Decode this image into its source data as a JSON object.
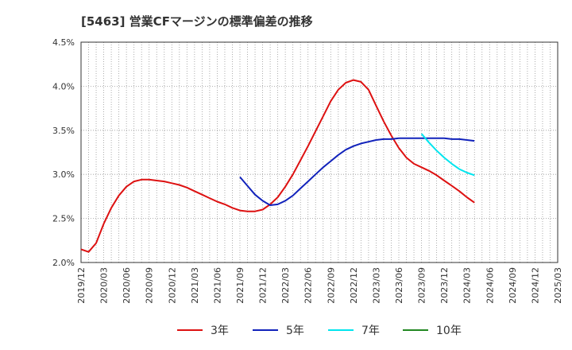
{
  "chart_data": {
    "type": "line",
    "title": "[5463]  営業CFマージンの標準偏差の推移",
    "xlabel": "",
    "ylabel": "",
    "y_ticks": [
      "2.0%",
      "2.5%",
      "3.0%",
      "3.5%",
      "4.0%",
      "4.5%"
    ],
    "y_tick_values": [
      2.0,
      2.5,
      3.0,
      3.5,
      4.0,
      4.5
    ],
    "ylim": [
      2.0,
      4.5
    ],
    "x_range": [
      "2019/12",
      "2025/03"
    ],
    "x_ticks": [
      "2019/12",
      "2020/03",
      "2020/06",
      "2020/09",
      "2020/12",
      "2021/03",
      "2021/06",
      "2021/09",
      "2021/12",
      "2022/03",
      "2022/06",
      "2022/09",
      "2022/12",
      "2023/03",
      "2023/06",
      "2023/09",
      "2023/12",
      "2024/03",
      "2024/06",
      "2024/09",
      "2024/12",
      "2025/03"
    ],
    "grid": true,
    "legend_position": "bottom",
    "series": [
      {
        "name": "3年",
        "color": "#dd1111",
        "points": [
          [
            "2019/12",
            2.15
          ],
          [
            "2020/01",
            2.12
          ],
          [
            "2020/02",
            2.22
          ],
          [
            "2020/03",
            2.44
          ],
          [
            "2020/04",
            2.62
          ],
          [
            "2020/05",
            2.76
          ],
          [
            "2020/06",
            2.86
          ],
          [
            "2020/07",
            2.92
          ],
          [
            "2020/08",
            2.94
          ],
          [
            "2020/09",
            2.94
          ],
          [
            "2020/10",
            2.93
          ],
          [
            "2020/11",
            2.92
          ],
          [
            "2020/12",
            2.9
          ],
          [
            "2021/01",
            2.88
          ],
          [
            "2021/02",
            2.85
          ],
          [
            "2021/03",
            2.81
          ],
          [
            "2021/04",
            2.77
          ],
          [
            "2021/05",
            2.73
          ],
          [
            "2021/06",
            2.69
          ],
          [
            "2021/07",
            2.66
          ],
          [
            "2021/08",
            2.62
          ],
          [
            "2021/09",
            2.59
          ],
          [
            "2021/10",
            2.58
          ],
          [
            "2021/11",
            2.58
          ],
          [
            "2021/12",
            2.6
          ],
          [
            "2022/01",
            2.66
          ],
          [
            "2022/02",
            2.74
          ],
          [
            "2022/03",
            2.86
          ],
          [
            "2022/04",
            3.0
          ],
          [
            "2022/05",
            3.16
          ],
          [
            "2022/06",
            3.32
          ],
          [
            "2022/07",
            3.49
          ],
          [
            "2022/08",
            3.66
          ],
          [
            "2022/09",
            3.83
          ],
          [
            "2022/10",
            3.96
          ],
          [
            "2022/11",
            4.04
          ],
          [
            "2022/12",
            4.07
          ],
          [
            "2023/01",
            4.05
          ],
          [
            "2023/02",
            3.96
          ],
          [
            "2023/03",
            3.78
          ],
          [
            "2023/04",
            3.6
          ],
          [
            "2023/05",
            3.44
          ],
          [
            "2023/06",
            3.3
          ],
          [
            "2023/07",
            3.19
          ],
          [
            "2023/08",
            3.12
          ],
          [
            "2023/09",
            3.08
          ],
          [
            "2023/10",
            3.04
          ],
          [
            "2023/11",
            2.99
          ],
          [
            "2023/12",
            2.93
          ],
          [
            "2024/01",
            2.87
          ],
          [
            "2024/02",
            2.81
          ],
          [
            "2024/03",
            2.74
          ],
          [
            "2024/04",
            2.68
          ]
        ]
      },
      {
        "name": "5年",
        "color": "#1122bb",
        "points": [
          [
            "2021/09",
            2.97
          ],
          [
            "2021/10",
            2.87
          ],
          [
            "2021/11",
            2.77
          ],
          [
            "2021/12",
            2.7
          ],
          [
            "2022/01",
            2.65
          ],
          [
            "2022/02",
            2.66
          ],
          [
            "2022/03",
            2.7
          ],
          [
            "2022/04",
            2.76
          ],
          [
            "2022/05",
            2.84
          ],
          [
            "2022/06",
            2.92
          ],
          [
            "2022/07",
            3.0
          ],
          [
            "2022/08",
            3.08
          ],
          [
            "2022/09",
            3.15
          ],
          [
            "2022/10",
            3.22
          ],
          [
            "2022/11",
            3.28
          ],
          [
            "2022/12",
            3.32
          ],
          [
            "2023/01",
            3.35
          ],
          [
            "2023/02",
            3.37
          ],
          [
            "2023/03",
            3.39
          ],
          [
            "2023/04",
            3.4
          ],
          [
            "2023/05",
            3.4
          ],
          [
            "2023/06",
            3.41
          ],
          [
            "2023/07",
            3.41
          ],
          [
            "2023/08",
            3.41
          ],
          [
            "2023/09",
            3.41
          ],
          [
            "2023/10",
            3.41
          ],
          [
            "2023/11",
            3.41
          ],
          [
            "2023/12",
            3.41
          ],
          [
            "2024/01",
            3.4
          ],
          [
            "2024/02",
            3.4
          ],
          [
            "2024/03",
            3.39
          ],
          [
            "2024/04",
            3.38
          ]
        ]
      },
      {
        "name": "7年",
        "color": "#00e5ee",
        "points": [
          [
            "2023/09",
            3.46
          ],
          [
            "2023/10",
            3.36
          ],
          [
            "2023/11",
            3.27
          ],
          [
            "2023/12",
            3.19
          ],
          [
            "2024/01",
            3.12
          ],
          [
            "2024/02",
            3.06
          ],
          [
            "2024/03",
            3.02
          ],
          [
            "2024/04",
            2.99
          ]
        ]
      },
      {
        "name": "10年",
        "color": "#228822",
        "points": []
      }
    ]
  }
}
